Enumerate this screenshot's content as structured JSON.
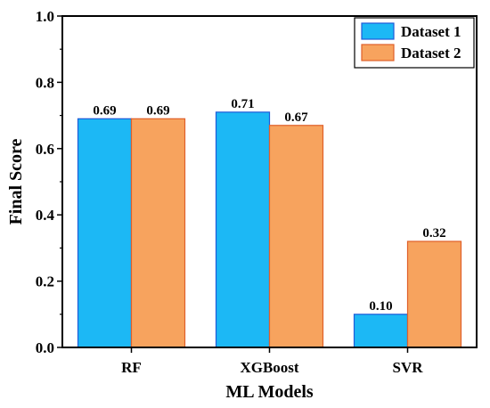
{
  "chart_data": {
    "type": "bar",
    "categories": [
      "RF",
      "XGBoost",
      "SVR"
    ],
    "series": [
      {
        "name": "Dataset 1",
        "values": [
          0.69,
          0.71,
          0.1
        ],
        "color": "#1CB8F5",
        "edge": "#1E5BD8",
        "labels": [
          "0.69",
          "0.71",
          "0.10"
        ]
      },
      {
        "name": "Dataset 2",
        "values": [
          0.69,
          0.67,
          0.32
        ],
        "color": "#F7A35E",
        "edge": "#E0602A",
        "labels": [
          "0.69",
          "0.67",
          "0.32"
        ]
      }
    ],
    "xlabel": "ML Models",
    "ylabel": "Final Score",
    "ylim": [
      0,
      1.0
    ],
    "yticks": [
      "0.0",
      "0.2",
      "0.4",
      "0.6",
      "0.8",
      "1.0"
    ],
    "ytick_values": [
      0,
      0.2,
      0.4,
      0.6,
      0.8,
      1.0
    ],
    "grid": false,
    "legend_position": "top-right"
  }
}
